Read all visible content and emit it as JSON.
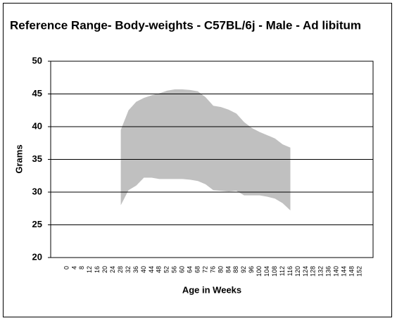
{
  "chart_data": {
    "type": "range-area",
    "title": "Reference Range- Body-weights - C57BL/6j - Male - Ad libitum",
    "x_label": "Age in Weeks",
    "y_label": "Grams",
    "categories": [
      "0",
      "4",
      "8",
      "12",
      "16",
      "20",
      "24",
      "28",
      "32",
      "36",
      "40",
      "44",
      "48",
      "52",
      "56",
      "60",
      "64",
      "68",
      "72",
      "76",
      "80",
      "84",
      "88",
      "92",
      "96",
      "100",
      "104",
      "108",
      "112",
      "116",
      "120",
      "124",
      "128",
      "132",
      "136",
      "140",
      "144",
      "148",
      "152"
    ],
    "series": [
      {
        "values": [
          null,
          null,
          null,
          null,
          null,
          null,
          null,
          39.5,
          42.5,
          43.8,
          44.4,
          44.8,
          45.1,
          45.5,
          45.7,
          45.7,
          45.6,
          45.4,
          44.5,
          43.2,
          43,
          42.6,
          42,
          40.7,
          39.8,
          39.2,
          38.7,
          38.2,
          37.3,
          36.8,
          null,
          null,
          null,
          null,
          null,
          null,
          null,
          null,
          null
        ]
      },
      {
        "values": [
          null,
          null,
          null,
          null,
          null,
          null,
          null,
          28,
          30.3,
          31,
          32.2,
          32.2,
          32,
          32,
          32,
          32,
          31.9,
          31.7,
          31.2,
          30.3,
          30.2,
          30.1,
          30.2,
          29.5,
          29.5,
          29.5,
          29.3,
          29,
          28.3,
          27.2,
          null,
          null,
          null,
          null,
          null,
          null,
          null,
          null,
          null
        ]
      }
    ],
    "color": "#c0c0c0",
    "ylim": [
      20,
      50
    ],
    "yticks": [
      20,
      25,
      30,
      35,
      40,
      45,
      50
    ],
    "grid": true
  }
}
